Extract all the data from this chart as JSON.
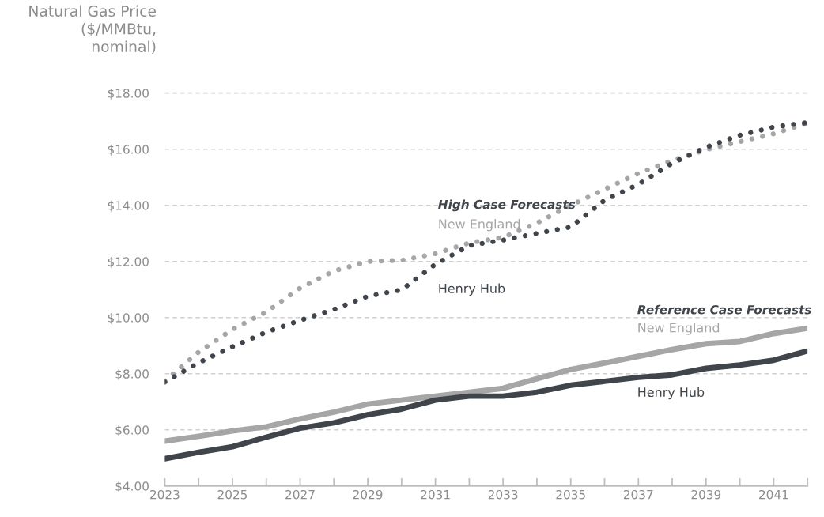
{
  "chart_data": {
    "type": "line",
    "ylabel": "Natural Gas Price\n($/MMBtu,\nnominal)",
    "x": [
      2023,
      2024,
      2025,
      2026,
      2027,
      2028,
      2029,
      2030,
      2031,
      2032,
      2033,
      2034,
      2035,
      2036,
      2037,
      2038,
      2039,
      2040,
      2041,
      2042
    ],
    "series": [
      {
        "name": "New England",
        "color": "#a6a6a6",
        "line_style": "dotted",
        "values": [
          7.74,
          8.77,
          9.58,
          10.2,
          11.05,
          11.66,
          12.0,
          12.04,
          12.28,
          12.66,
          12.86,
          13.37,
          14.0,
          14.57,
          15.14,
          15.6,
          15.98,
          16.27,
          16.55,
          16.93
        ]
      },
      {
        "name": "Henry Hub",
        "color": "#3f454a",
        "line_style": "dotted",
        "values": [
          7.7,
          8.39,
          8.96,
          9.48,
          9.9,
          10.29,
          10.76,
          10.99,
          11.9,
          12.57,
          12.76,
          13.0,
          13.23,
          14.18,
          14.75,
          15.5,
          16.07,
          16.5,
          16.79,
          16.95
        ]
      },
      {
        "name": "New England",
        "color": "#a6a6a6",
        "line_style": "solid",
        "values": [
          5.6,
          5.77,
          5.96,
          6.11,
          6.39,
          6.63,
          6.92,
          7.06,
          7.2,
          7.34,
          7.48,
          7.82,
          8.15,
          8.38,
          8.62,
          8.86,
          9.07,
          9.15,
          9.43,
          9.62
        ]
      },
      {
        "name": "Henry Hub",
        "color": "#3f454a",
        "line_style": "solid",
        "values": [
          4.97,
          5.2,
          5.4,
          5.74,
          6.06,
          6.25,
          6.54,
          6.74,
          7.06,
          7.2,
          7.2,
          7.34,
          7.59,
          7.73,
          7.87,
          7.96,
          8.19,
          8.31,
          8.48,
          8.81
        ]
      }
    ],
    "annotations": [
      "High Case Forecasts",
      "Reference Case Forecasts"
    ],
    "xlim": [
      2023,
      2042
    ],
    "xticks": [
      2023,
      {
        "value": 2024,
        "label": null
      },
      2025,
      {
        "value": 2026,
        "label": null
      },
      2027,
      {
        "value": 2028,
        "label": null
      },
      2029,
      {
        "value": 2030,
        "label": null
      },
      2031,
      {
        "value": 2032,
        "label": null
      },
      2033,
      {
        "value": 2034,
        "label": null
      },
      2035,
      {
        "value": 2036,
        "label": null
      },
      2037,
      {
        "value": 2038,
        "label": null
      },
      2039,
      {
        "value": 2040,
        "label": null
      },
      2041,
      {
        "value": 2042,
        "label": null
      }
    ],
    "ylim": [
      4,
      18
    ],
    "yticks": [
      {
        "value": 4,
        "label": "$4.00"
      },
      {
        "value": 6,
        "label": "$6.00"
      },
      {
        "value": 8,
        "label": "$8.00"
      },
      {
        "value": 10,
        "label": "$10.00"
      },
      {
        "value": 12,
        "label": "$12.00"
      },
      {
        "value": 14,
        "label": "$14.00"
      },
      {
        "value": 16,
        "label": "$16.00"
      },
      {
        "value": 18,
        "label": "$18.00"
      }
    ],
    "grid": "y",
    "legend": false
  }
}
